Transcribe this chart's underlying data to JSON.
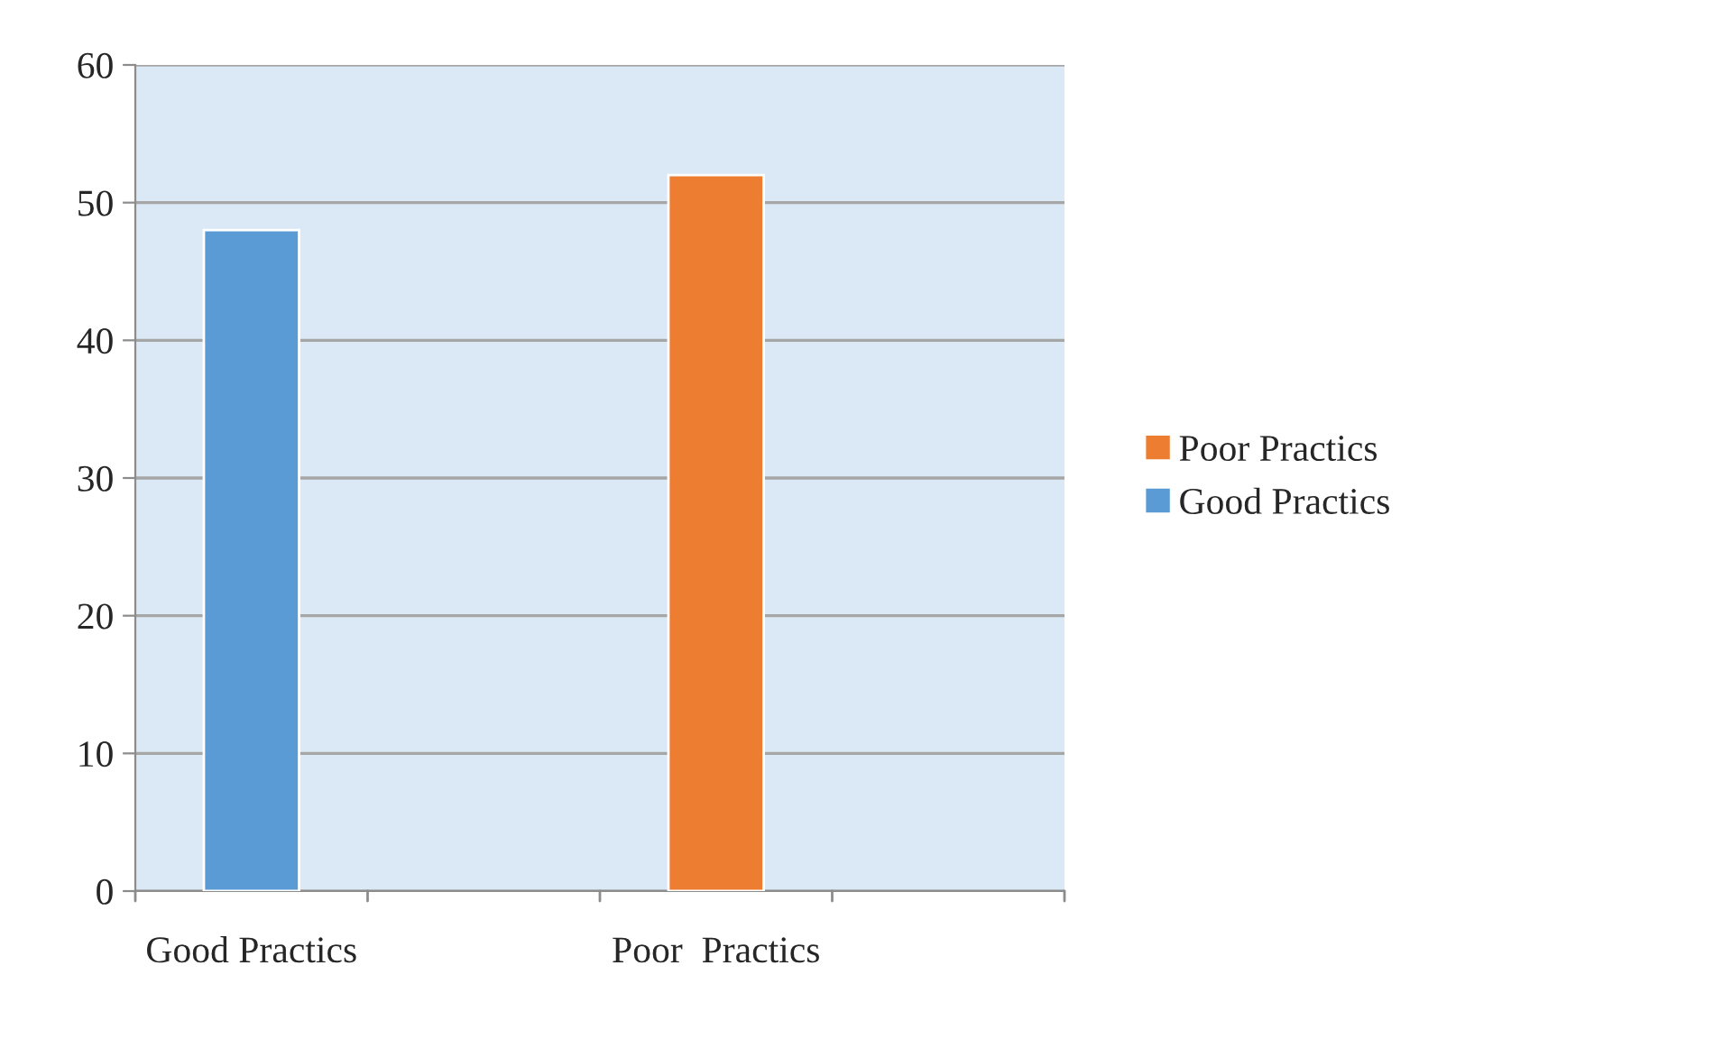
{
  "chart_data": {
    "type": "bar",
    "categories": [
      "Good Practics",
      null,
      "Poor  Practics",
      null
    ],
    "series": [
      {
        "name": "Poor Practics",
        "color": "#ed7d31",
        "values": [
          null,
          null,
          52,
          null
        ]
      },
      {
        "name": "Good Practics",
        "color": "#5b9bd5",
        "values": [
          48,
          null,
          null,
          null
        ]
      }
    ],
    "ylim": [
      0,
      60
    ],
    "yticks": [
      0,
      10,
      20,
      30,
      40,
      50,
      60
    ],
    "grid": "y",
    "legend": "right"
  }
}
